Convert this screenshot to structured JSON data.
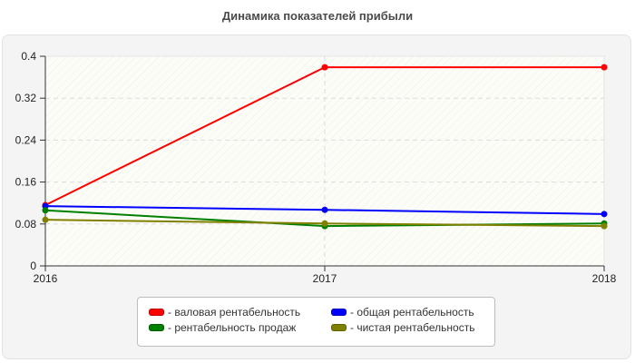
{
  "title": "Динамика показателей прибыли",
  "chart_data": {
    "type": "line",
    "title": "Динамика показателей прибыли",
    "xlabel": "",
    "ylabel": "",
    "x": [
      "2016",
      "2017",
      "2018"
    ],
    "ylim": [
      0,
      0.4
    ],
    "yticks": [
      0,
      0.08,
      0.16,
      0.24,
      0.32,
      0.4
    ],
    "ytick_labels": [
      "0",
      "0.08",
      "0.16",
      "0.24",
      "0.32",
      "0.4"
    ],
    "grid": true,
    "legend_position": "bottom",
    "series": [
      {
        "name": "валовая рентабельность",
        "color": "#ff0000",
        "values": [
          0.116,
          0.379,
          0.379
        ]
      },
      {
        "name": "общая рентабельность",
        "color": "#0000ff",
        "values": [
          0.114,
          0.107,
          0.099
        ]
      },
      {
        "name": "рентабельность продаж",
        "color": "#008000",
        "values": [
          0.106,
          0.076,
          0.081
        ]
      },
      {
        "name": "чистая рентабельность",
        "color": "#808000",
        "values": [
          0.088,
          0.081,
          0.076
        ]
      }
    ]
  },
  "legend": {
    "items": [
      {
        "label": "- валовая рентабельность",
        "color": "#ff0000"
      },
      {
        "label": "- общая рентабельность",
        "color": "#0000ff"
      },
      {
        "label": "- рентабельность продаж",
        "color": "#008000"
      },
      {
        "label": "- чистая рентабельность",
        "color": "#808000"
      }
    ]
  }
}
